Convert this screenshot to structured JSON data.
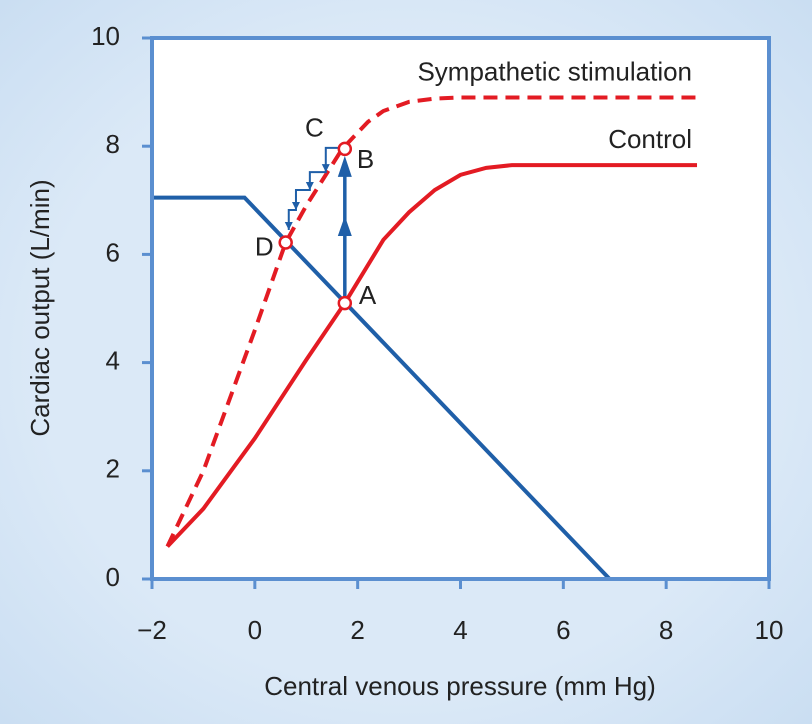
{
  "chart_data": {
    "type": "line",
    "xlabel": "Central venous pressure (mm Hg)",
    "ylabel": "Cardiac output (L/min)",
    "xlim": [
      -2,
      10
    ],
    "ylim": [
      0,
      10
    ],
    "xticks": [
      {
        "value": -2,
        "label": "−2"
      },
      0,
      2,
      4,
      6,
      8,
      10
    ],
    "yticks": [
      0,
      2,
      4,
      6,
      8,
      10
    ],
    "series": [
      {
        "name": "Control",
        "color": "#e31b23",
        "dashed": false,
        "x": [
          -1.7,
          -1,
          0,
          1,
          1.75,
          2.5,
          3,
          3.5,
          4,
          4.5,
          5,
          6,
          7,
          8,
          8.6
        ],
        "values": [
          0.6,
          1.3,
          2.6,
          4.05,
          5.1,
          6.27,
          6.78,
          7.19,
          7.47,
          7.6,
          7.65,
          7.65,
          7.65,
          7.65,
          7.65
        ]
      },
      {
        "name": "Sympathetic stimulation",
        "color": "#e31b23",
        "dashed": true,
        "x": [
          -1.7,
          -1,
          0,
          0.6,
          1,
          1.7,
          2.2,
          2.5,
          3,
          3.5,
          4,
          5,
          6,
          7,
          8,
          8.6
        ],
        "values": [
          0.6,
          2.0,
          4.6,
          6.22,
          6.9,
          7.95,
          8.45,
          8.65,
          8.82,
          8.88,
          8.9,
          8.9,
          8.9,
          8.9,
          8.9,
          8.9
        ]
      },
      {
        "color": "#1f5fa8",
        "dashed": false,
        "x": [
          -2,
          -0.2,
          6.9
        ],
        "values": [
          7.05,
          7.05,
          0
        ]
      }
    ],
    "staircase": {
      "color": "#1f5fa8",
      "x": [
        1.73,
        1.38,
        1.38,
        1.07,
        1.07,
        0.8,
        0.8,
        0.66,
        0.66
      ],
      "values": [
        7.97,
        7.97,
        7.52,
        7.52,
        7.19,
        7.19,
        6.82,
        6.82,
        6.45
      ]
    },
    "points": [
      {
        "label": "A",
        "x": 1.75,
        "y": 5.1,
        "marker": true
      },
      {
        "label": "B",
        "x": 1.75,
        "y": 7.95,
        "marker": true
      },
      {
        "label": "C",
        "x": 1.38,
        "y": 7.97,
        "marker": false
      },
      {
        "label": "D",
        "x": 0.6,
        "y": 6.22,
        "marker": true
      }
    ]
  }
}
